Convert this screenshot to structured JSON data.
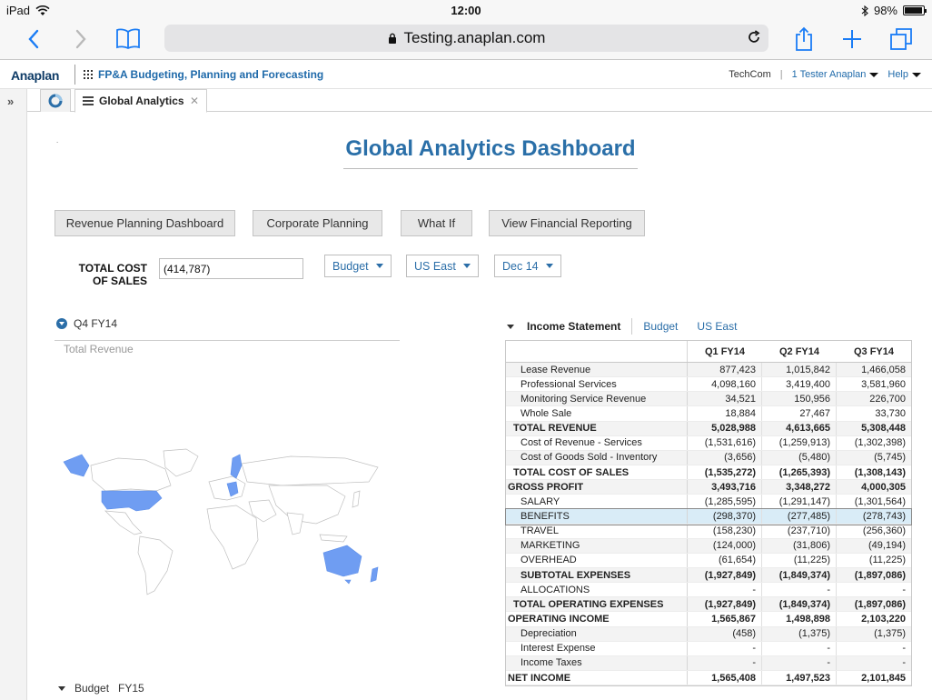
{
  "statusbar": {
    "device": "iPad",
    "time": "12:00",
    "battery": "98%"
  },
  "browser": {
    "url": "Testing.anaplan.com"
  },
  "app": {
    "logo": "Anaplan",
    "name": "FP&A Budgeting, Planning and Forecasting",
    "workspace": "TechCom",
    "user": "1 Tester Anaplan",
    "help": "Help"
  },
  "tabs": {
    "active": "Global Analytics"
  },
  "dashboard": {
    "title": "Global Analytics Dashboard",
    "nav_buttons": [
      "Revenue Planning Dashboard",
      "Corporate Planning",
      "What If",
      "View Financial Reporting"
    ],
    "tcos_label_line1": "TOTAL COST",
    "tcos_label_line2": "OF SALES",
    "tcos_value": "(414,787)",
    "filters": [
      "Budget",
      "US East",
      "Dec 14"
    ]
  },
  "left_panel": {
    "period": "Q4 FY14",
    "chart_title": "Total Revenue",
    "footer_version": "Budget",
    "footer_year": "FY15"
  },
  "income_statement": {
    "title": "Income Statement",
    "version": "Budget",
    "region": "US East",
    "columns": [
      "Q1 FY14",
      "Q2 FY14",
      "Q3 FY14"
    ],
    "rows": [
      {
        "label": "Lease Revenue",
        "values": [
          "877,423",
          "1,015,842",
          "1,466,058"
        ],
        "indent": 2
      },
      {
        "label": "Professional Services",
        "values": [
          "4,098,160",
          "3,419,400",
          "3,581,960"
        ],
        "indent": 2
      },
      {
        "label": "Monitoring Service Revenue",
        "values": [
          "34,521",
          "150,956",
          "226,700"
        ],
        "indent": 2
      },
      {
        "label": "Whole Sale",
        "values": [
          "18,884",
          "27,467",
          "33,730"
        ],
        "indent": 2
      },
      {
        "label": "TOTAL REVENUE",
        "values": [
          "5,028,988",
          "4,613,665",
          "5,308,448"
        ],
        "indent": 1,
        "bold": true
      },
      {
        "label": "Cost of Revenue - Services",
        "values": [
          "(1,531,616)",
          "(1,259,913)",
          "(1,302,398)"
        ],
        "indent": 2
      },
      {
        "label": "Cost of Goods Sold - Inventory",
        "values": [
          "(3,656)",
          "(5,480)",
          "(5,745)"
        ],
        "indent": 2
      },
      {
        "label": "TOTAL COST OF SALES",
        "values": [
          "(1,535,272)",
          "(1,265,393)",
          "(1,308,143)"
        ],
        "indent": 1,
        "bold": true
      },
      {
        "label": "GROSS PROFIT",
        "values": [
          "3,493,716",
          "3,348,272",
          "4,000,305"
        ],
        "indent": 0,
        "bold": true
      },
      {
        "label": "SALARY",
        "values": [
          "(1,285,595)",
          "(1,291,147)",
          "(1,301,564)"
        ],
        "indent": 2
      },
      {
        "label": "BENEFITS",
        "values": [
          "(298,370)",
          "(277,485)",
          "(278,743)"
        ],
        "indent": 2,
        "selected": true
      },
      {
        "label": "TRAVEL",
        "values": [
          "(158,230)",
          "(237,710)",
          "(256,360)"
        ],
        "indent": 2
      },
      {
        "label": "MARKETING",
        "values": [
          "(124,000)",
          "(31,806)",
          "(49,194)"
        ],
        "indent": 2
      },
      {
        "label": "OVERHEAD",
        "values": [
          "(61,654)",
          "(11,225)",
          "(11,225)"
        ],
        "indent": 2
      },
      {
        "label": "SUBTOTAL EXPENSES",
        "values": [
          "(1,927,849)",
          "(1,849,374)",
          "(1,897,086)"
        ],
        "indent": 2,
        "bold": true
      },
      {
        "label": "ALLOCATIONS",
        "values": [
          "-",
          "-",
          "-"
        ],
        "indent": 2
      },
      {
        "label": "TOTAL OPERATING EXPENSES",
        "values": [
          "(1,927,849)",
          "(1,849,374)",
          "(1,897,086)"
        ],
        "indent": 1,
        "bold": true
      },
      {
        "label": "OPERATING INCOME",
        "values": [
          "1,565,867",
          "1,498,898",
          "2,103,220"
        ],
        "indent": 0,
        "bold": true
      },
      {
        "label": "Depreciation",
        "values": [
          "(458)",
          "(1,375)",
          "(1,375)"
        ],
        "indent": 2
      },
      {
        "label": "Interest Expense",
        "values": [
          "-",
          "-",
          "-"
        ],
        "indent": 2
      },
      {
        "label": "Income Taxes",
        "values": [
          "-",
          "-",
          "-"
        ],
        "indent": 2
      },
      {
        "label": "NET INCOME",
        "values": [
          "1,565,408",
          "1,497,523",
          "2,101,845"
        ],
        "indent": 0,
        "bold": true
      }
    ]
  },
  "colors": {
    "accent": "#2b6ea8",
    "map_highlight": "#6f9df2",
    "map_base": "#ffffff",
    "selected_row": "#d9ecf7"
  }
}
